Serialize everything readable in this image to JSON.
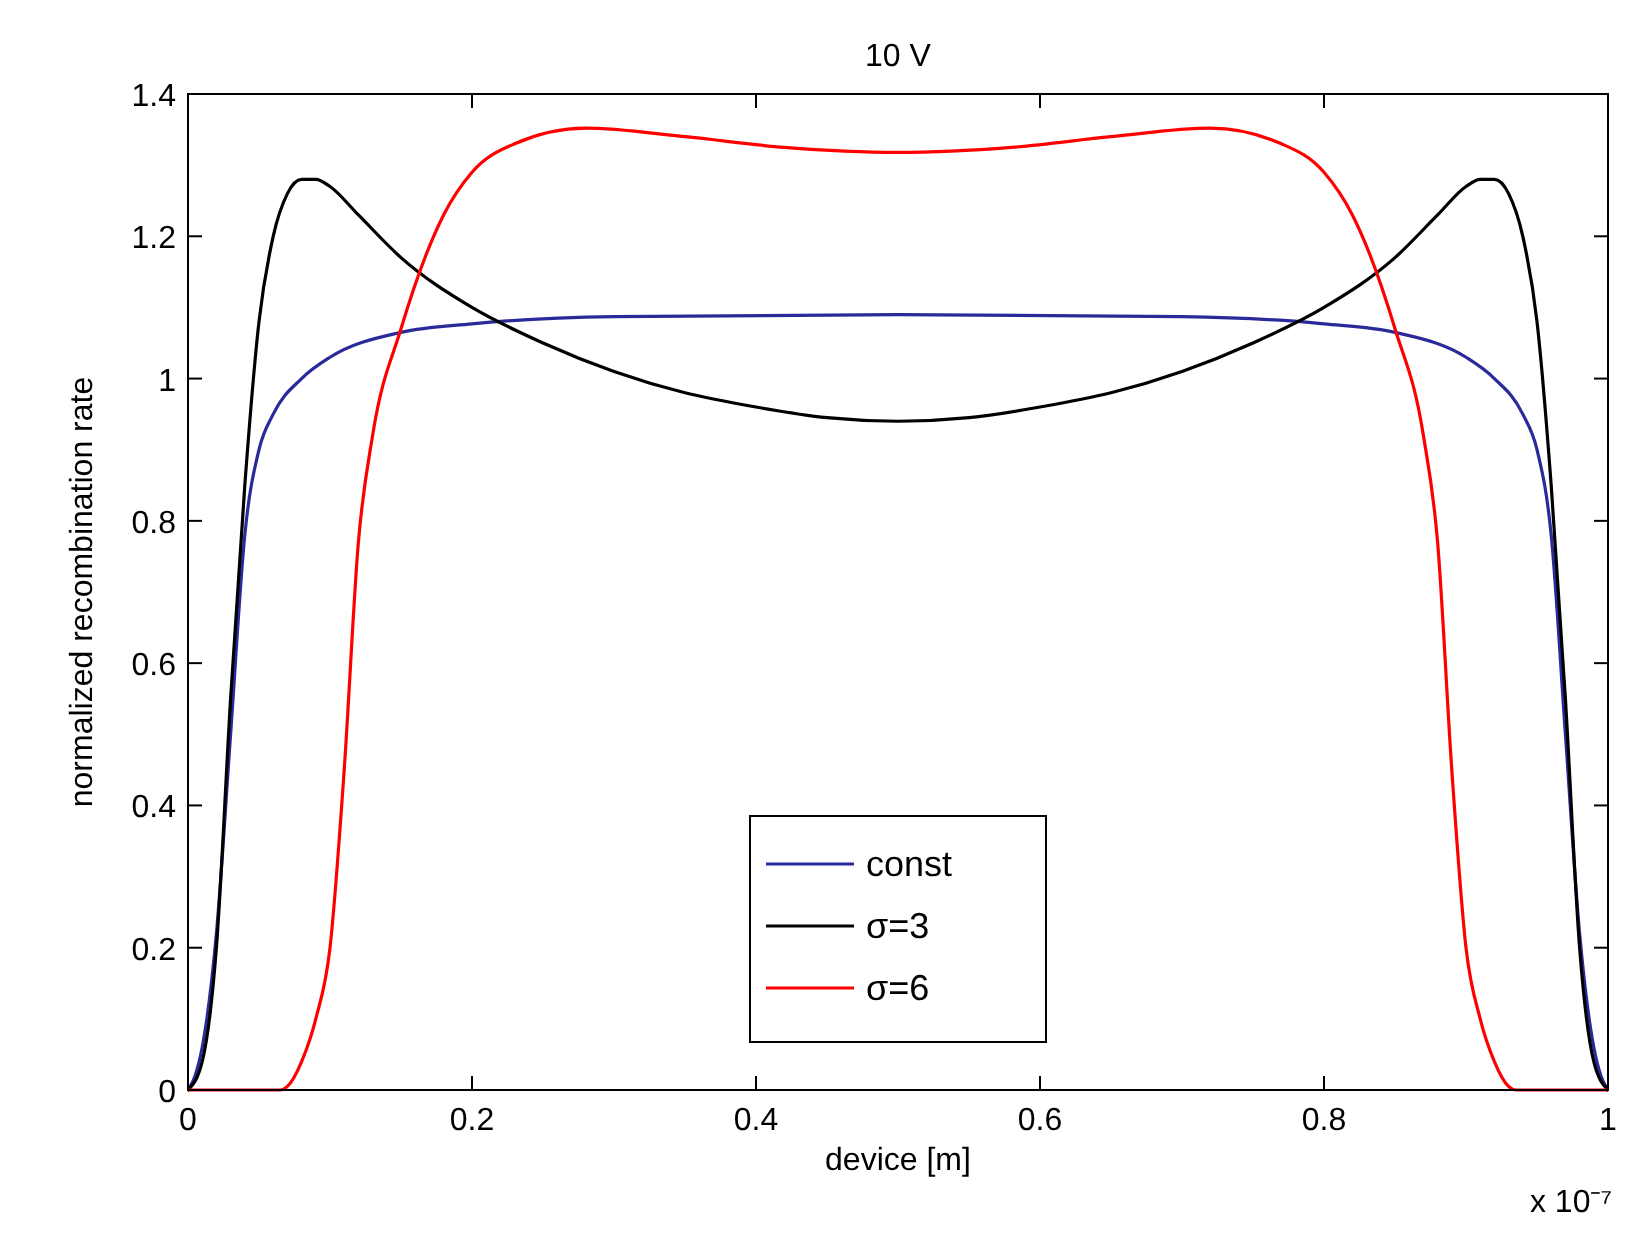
{
  "chart_data": {
    "type": "line",
    "title": "10 V",
    "xlabel": "device [m]",
    "ylabel": "normalized recombination rate",
    "annotations": [
      "x 10⁻⁷"
    ],
    "xlim": [
      0,
      1
    ],
    "xticks": [
      0,
      0.2,
      0.4,
      0.6,
      0.8,
      1
    ],
    "ylim": [
      0,
      1.4
    ],
    "yticks": [
      0,
      0.2,
      0.4,
      0.6,
      0.8,
      1,
      1.2,
      1.4
    ],
    "grid": false,
    "legend": "bottom",
    "line_style": "solid",
    "series": [
      {
        "name": "const",
        "color": "#2a2a9a",
        "x": [
          0,
          0.005,
          0.01,
          0.02,
          0.03,
          0.04,
          0.05,
          0.06,
          0.08,
          0.1,
          0.15,
          0.2,
          0.3,
          0.5,
          0.7,
          0.8,
          0.85,
          0.9,
          0.92,
          0.94,
          0.95,
          0.96,
          0.97,
          0.98,
          0.99,
          0.995,
          1
        ],
        "values": [
          0,
          0.02,
          0.06,
          0.22,
          0.5,
          0.78,
          0.9,
          0.95,
          1.0,
          1.03,
          1.065,
          1.077,
          1.087,
          1.09,
          1.087,
          1.077,
          1.065,
          1.03,
          1.0,
          0.95,
          0.9,
          0.78,
          0.5,
          0.22,
          0.06,
          0.02,
          0
        ]
      },
      {
        "name": "σ=3",
        "color": "#000000",
        "x": [
          0,
          0.01,
          0.02,
          0.03,
          0.04,
          0.05,
          0.06,
          0.07,
          0.08,
          0.09,
          0.1,
          0.12,
          0.15,
          0.2,
          0.25,
          0.3,
          0.35,
          0.4,
          0.45,
          0.5,
          0.55,
          0.6,
          0.65,
          0.7,
          0.75,
          0.8,
          0.85,
          0.88,
          0.9,
          0.91,
          0.92,
          0.93,
          0.94,
          0.95,
          0.96,
          0.97,
          0.98,
          0.99,
          1
        ],
        "values": [
          0,
          0.04,
          0.2,
          0.55,
          0.85,
          1.08,
          1.2,
          1.26,
          1.28,
          1.28,
          1.27,
          1.23,
          1.17,
          1.1,
          1.05,
          1.01,
          0.98,
          0.96,
          0.945,
          0.94,
          0.945,
          0.96,
          0.98,
          1.01,
          1.05,
          1.1,
          1.17,
          1.23,
          1.27,
          1.28,
          1.28,
          1.26,
          1.2,
          1.08,
          0.85,
          0.55,
          0.2,
          0.04,
          0
        ]
      },
      {
        "name": "σ=6",
        "color": "#ff0000",
        "x": [
          0,
          0.065,
          0.07,
          0.08,
          0.09,
          0.1,
          0.11,
          0.12,
          0.13,
          0.15,
          0.18,
          0.2,
          0.23,
          0.28,
          0.35,
          0.42,
          0.5,
          0.58,
          0.65,
          0.72,
          0.77,
          0.8,
          0.82,
          0.85,
          0.87,
          0.88,
          0.89,
          0.9,
          0.91,
          0.92,
          0.93,
          0.935,
          1
        ],
        "values": [
          0,
          0,
          0.005,
          0.04,
          0.1,
          0.2,
          0.45,
          0.77,
          0.92,
          1.07,
          1.23,
          1.29,
          1.33,
          1.352,
          1.34,
          1.325,
          1.318,
          1.325,
          1.34,
          1.352,
          1.33,
          1.29,
          1.23,
          1.07,
          0.92,
          0.77,
          0.45,
          0.2,
          0.1,
          0.04,
          0.005,
          0,
          0
        ]
      }
    ]
  }
}
